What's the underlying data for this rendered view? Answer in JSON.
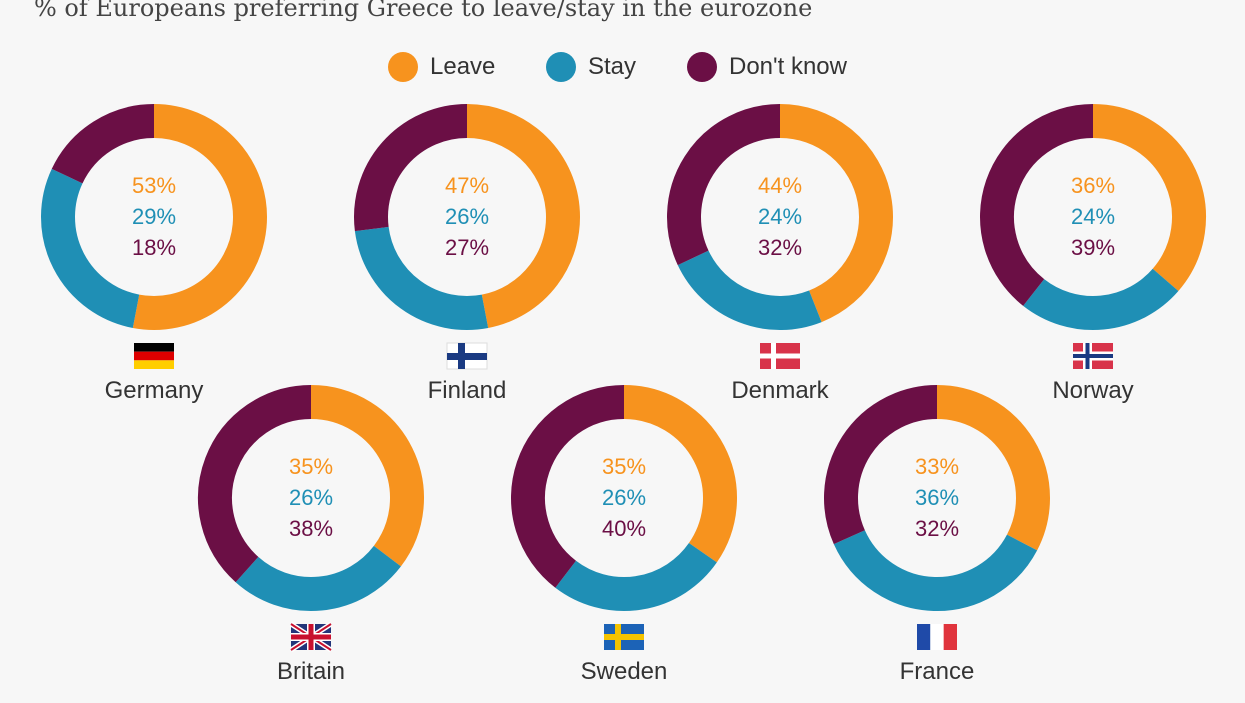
{
  "subtitle": "% of Europeans preferring Greece to leave/stay in the eurozone",
  "colors": {
    "leave": "#f7931e",
    "stay": "#1f8fb5",
    "dont_know": "#6b0f45"
  },
  "chart_data": {
    "type": "donut",
    "series_names": [
      "Leave",
      "Stay",
      "Don't know"
    ],
    "legend_position": "top",
    "countries": [
      {
        "name": "Germany",
        "flag": "germany-flag",
        "values": [
          53,
          29,
          18
        ]
      },
      {
        "name": "Finland",
        "flag": "finland-flag",
        "values": [
          47,
          26,
          27
        ]
      },
      {
        "name": "Denmark",
        "flag": "denmark-flag",
        "values": [
          44,
          24,
          32
        ]
      },
      {
        "name": "Norway",
        "flag": "norway-flag",
        "values": [
          36,
          24,
          39
        ]
      },
      {
        "name": "Britain",
        "flag": "uk-flag",
        "values": [
          35,
          26,
          38
        ]
      },
      {
        "name": "Sweden",
        "flag": "sweden-flag",
        "values": [
          35,
          26,
          40
        ]
      },
      {
        "name": "France",
        "flag": "france-flag",
        "values": [
          33,
          36,
          32
        ]
      }
    ]
  }
}
